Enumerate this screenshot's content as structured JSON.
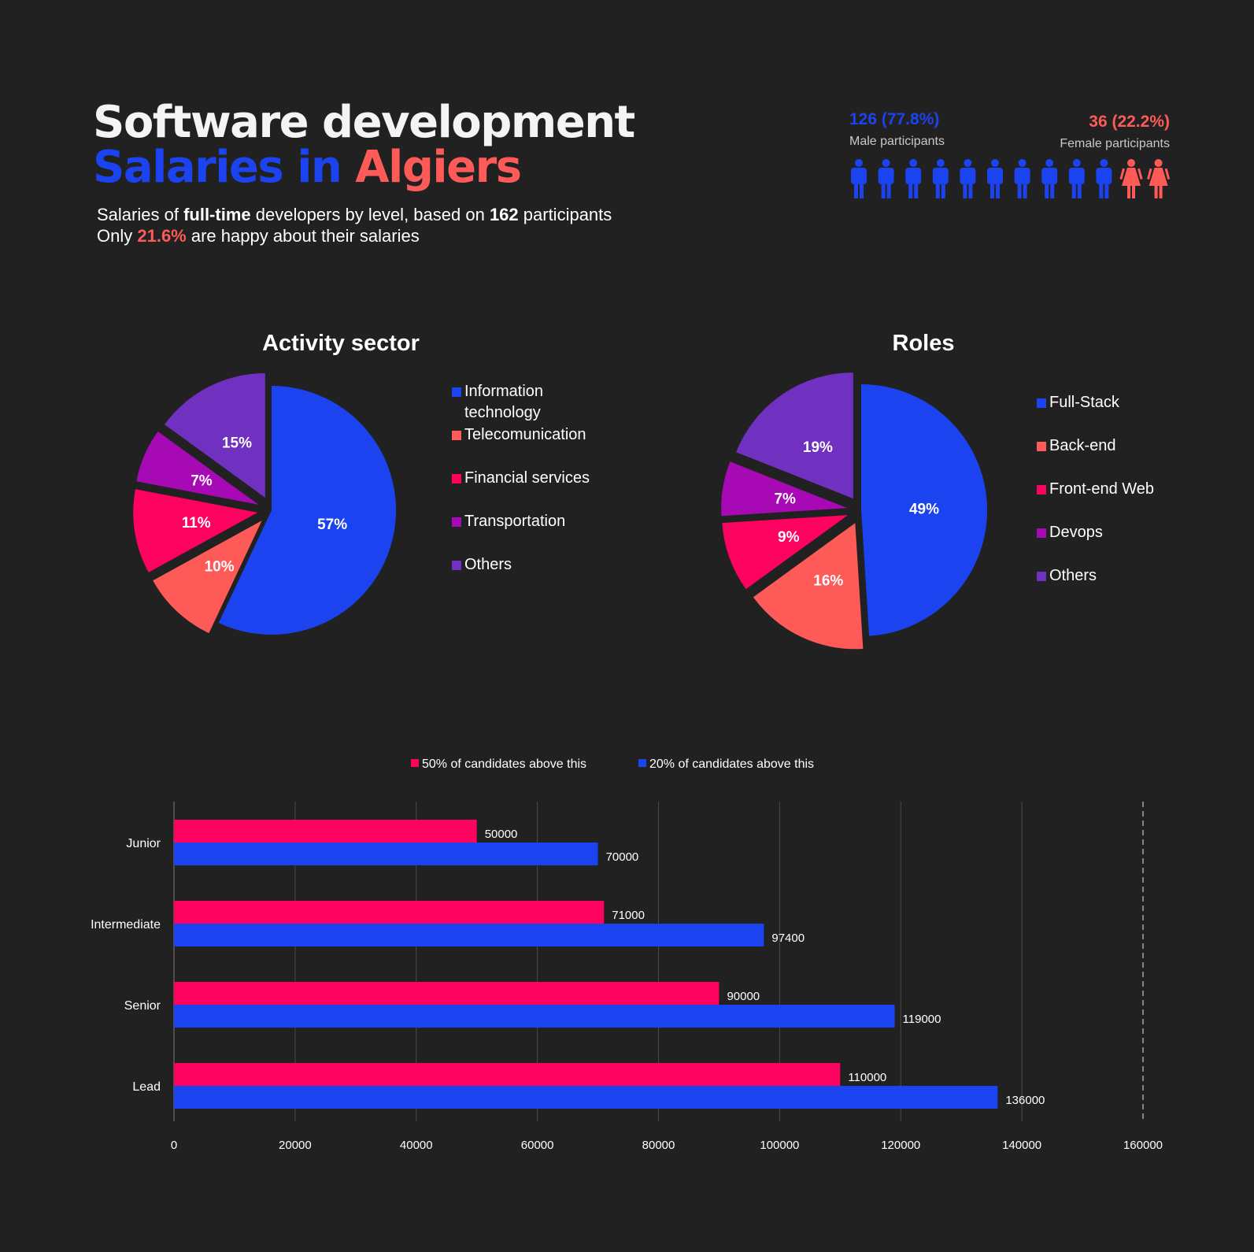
{
  "header": {
    "title_line1": "Software development",
    "title_line2_part1": "Salaries in",
    "title_line2_part2": "Algiers",
    "subtitle1_pre": "Salaries of ",
    "subtitle1_bold": "full-time",
    "subtitle1_mid": " developers by level, based on ",
    "subtitle1_num": "162",
    "subtitle1_post": " participants",
    "subtitle2_pre": "Only ",
    "subtitle2_pct": "21.6%",
    "subtitle2_post": " are happy about their salaries"
  },
  "participants": {
    "male_value": "126 (77.8%)",
    "male_label": "Male participants",
    "female_value": "36 (22.2%)",
    "female_label": "Female participants",
    "male_icons": 10,
    "female_icons": 2,
    "male_color": "#1c43f0",
    "female_color": "#fd5a58"
  },
  "colors": {
    "blue": "#1c43f0",
    "salmon": "#fd5a58",
    "pink": "#fe0260",
    "magenta": "#a70ab5",
    "purple": "#7030c0",
    "background": "#212121"
  },
  "chart_data": [
    {
      "type": "pie",
      "title": "Activity sector",
      "labels": [
        "Information technology",
        "Telecomunication",
        "Financial services",
        "Transportation",
        "Others"
      ],
      "legend_lines": [
        [
          "Information",
          "technology"
        ],
        [
          "Telecomunication"
        ],
        [
          "Financial services"
        ],
        [
          "Transportation"
        ],
        [
          "Others"
        ]
      ],
      "values": [
        57,
        10,
        11,
        7,
        15
      ],
      "value_labels": [
        "57%",
        "10%",
        "11%",
        "7%",
        "15%"
      ],
      "colors": [
        "#1c43f0",
        "#fd5a58",
        "#fe0260",
        "#a70ab5",
        "#7030c0"
      ],
      "exploded": [
        false,
        true,
        true,
        true,
        true
      ],
      "legend_position": "right"
    },
    {
      "type": "pie",
      "title": "Roles",
      "labels": [
        "Full-Stack",
        "Back-end",
        "Front-end Web",
        "Devops",
        "Others"
      ],
      "legend_lines": [
        [
          "Full-Stack"
        ],
        [
          "Back-end"
        ],
        [
          "Front-end Web"
        ],
        [
          "Devops"
        ],
        [
          "Others"
        ]
      ],
      "values": [
        49,
        16,
        9,
        7,
        19
      ],
      "value_labels": [
        "49%",
        "16%",
        "9%",
        "7%",
        "19%"
      ],
      "colors": [
        "#1c43f0",
        "#fd5a58",
        "#fe0260",
        "#a70ab5",
        "#7030c0"
      ],
      "exploded": [
        false,
        true,
        true,
        true,
        true
      ],
      "legend_position": "right"
    },
    {
      "type": "bar",
      "orientation": "horizontal",
      "categories": [
        "Junior",
        "Intermediate",
        "Senior",
        "Lead"
      ],
      "series": [
        {
          "name": "50% of candidates above this",
          "values": [
            50000,
            71000,
            90000,
            110000
          ],
          "color": "#fe0260"
        },
        {
          "name": "20% of candidates above this",
          "values": [
            70000,
            97400,
            119000,
            136000
          ],
          "color": "#1c43f0"
        }
      ],
      "xlim": [
        0,
        160000
      ],
      "xticks": [
        "0",
        "20000",
        "40000",
        "60000",
        "80000",
        "100000",
        "120000",
        "140000",
        "160000"
      ],
      "grid": true,
      "legend_position": "top"
    }
  ]
}
